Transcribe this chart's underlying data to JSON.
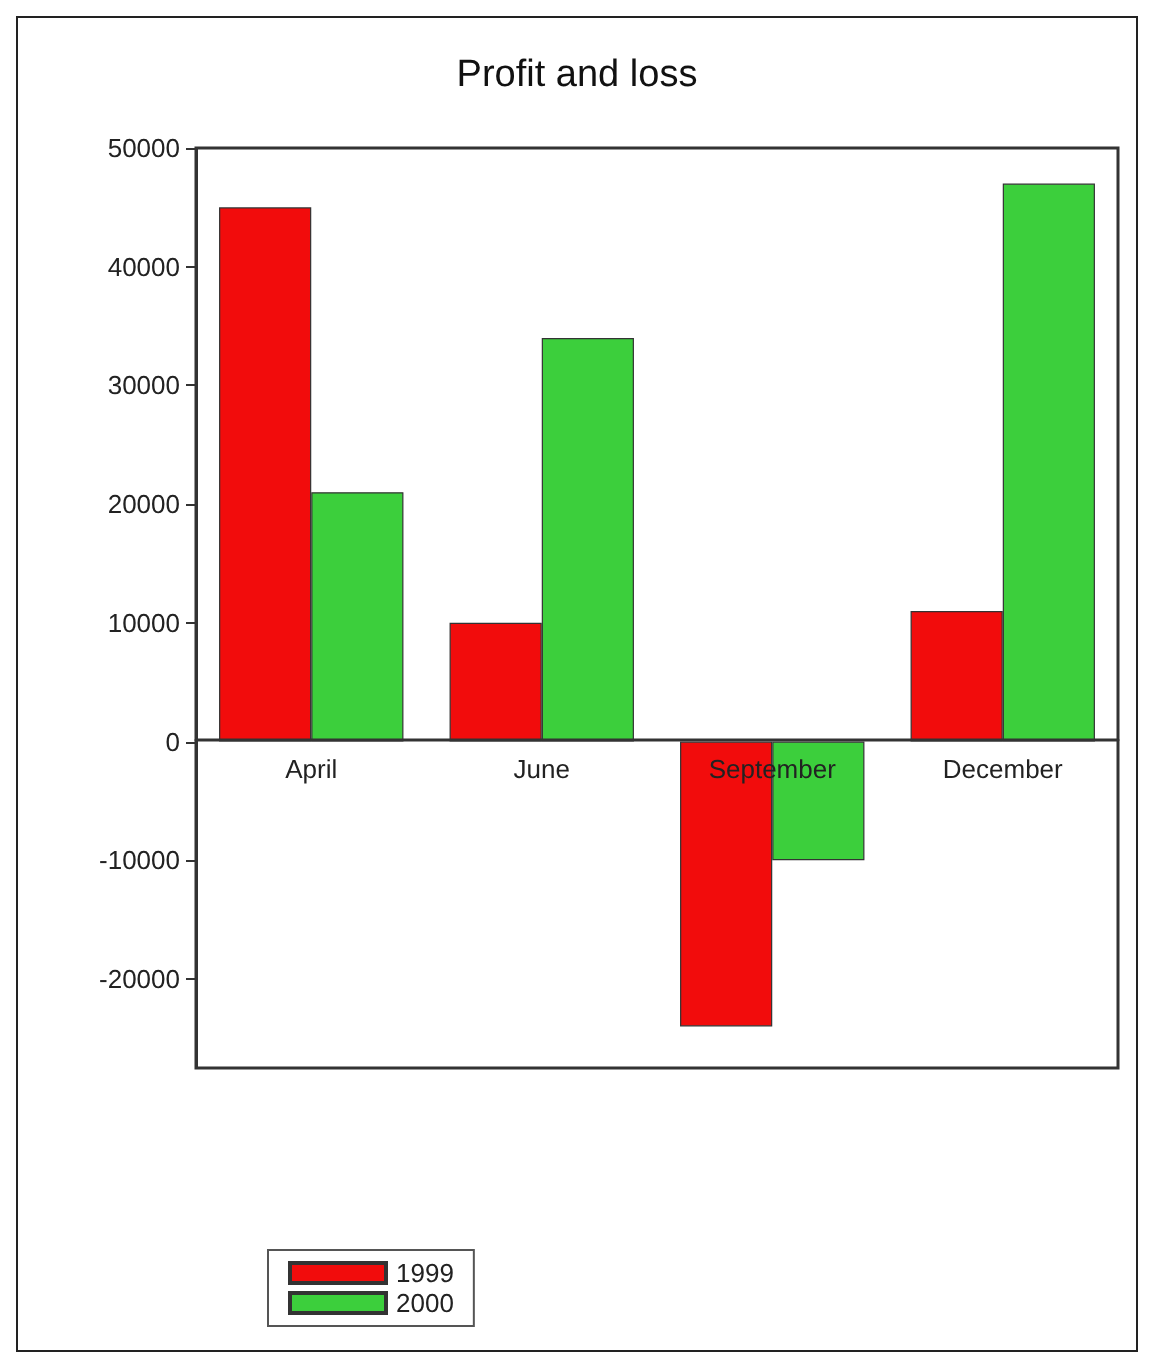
{
  "chart_data": {
    "type": "bar",
    "title": "Profit and loss",
    "categories": [
      "April",
      "June",
      "September",
      "December"
    ],
    "series": [
      {
        "name": "1999",
        "color": "#f20c0c",
        "values": [
          45000,
          10000,
          -24000,
          11000
        ]
      },
      {
        "name": "2000",
        "color": "#3ccf3c",
        "values": [
          21000,
          34000,
          -10000,
          47000
        ]
      }
    ],
    "ylim": [
      -27500,
      50000
    ],
    "yticks": [
      -20000,
      -10000,
      0,
      10000,
      20000,
      30000,
      40000,
      50000
    ],
    "grid": false,
    "legend": "bottom left"
  }
}
